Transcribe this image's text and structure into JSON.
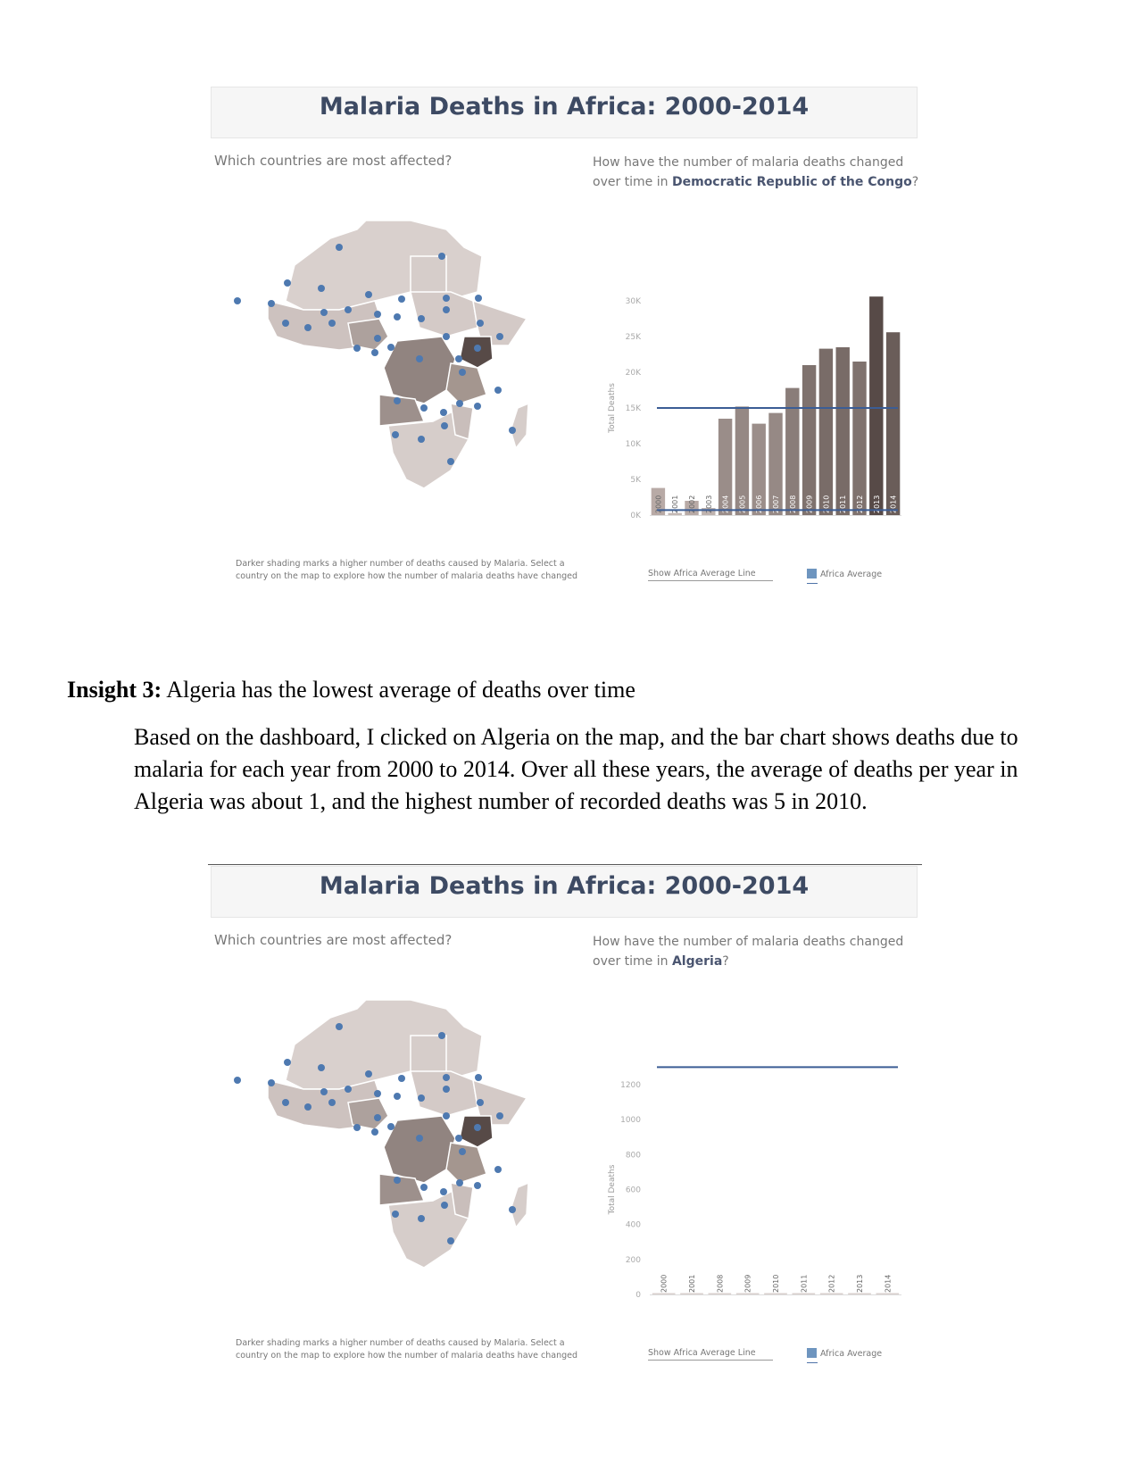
{
  "dashboard_1": {
    "title": "Malaria Deaths in Africa: 2000-2014",
    "map_question": "Which countries are most affected?",
    "chart_question_prefix": "How have the number of malaria deaths changed over time in",
    "country": "Democratic Republic of the Congo",
    "chart_question_suffix": "?",
    "map_note": "Darker shading marks a higher number of deaths caused by Malaria. Select a country on the map to explore how the number of malaria deaths have changed",
    "toggle_label": "Show Africa Average Line",
    "legend_label": "Africa Average"
  },
  "insight": {
    "label": "Insight 3:",
    "headline": "Algeria has the lowest average of deaths over time",
    "paragraph": "Based on the dashboard, I clicked on Algeria on the map, and the bar chart shows deaths due to malaria for each year from 2000 to 2014. Over all these years, the average of deaths per year in Algeria was about 1, and the highest number of recorded deaths was 5 in 2010."
  },
  "dashboard_2": {
    "title": "Malaria Deaths in Africa: 2000-2014",
    "map_question": "Which countries are most affected?",
    "chart_question_prefix": "How have the number of malaria deaths changed over time in",
    "country": "Algeria",
    "chart_question_suffix": "?",
    "map_note": "Darker shading marks a higher number of deaths caused by Malaria. Select a country on the map to explore how the number of malaria deaths have changed",
    "toggle_label": "Show Africa Average Line",
    "legend_label": "Africa Average"
  },
  "chart_data": [
    {
      "type": "bar",
      "ylabel": "Total Deaths",
      "ylim": [
        0,
        30000
      ],
      "yticks": [
        "0K",
        "5K",
        "10K",
        "15K",
        "20K",
        "25K",
        "30K"
      ],
      "ytick_values": [
        0,
        5000,
        10000,
        15000,
        20000,
        25000,
        30000
      ],
      "categories": [
        "2000",
        "2001",
        "2002",
        "2003",
        "2004",
        "2005",
        "2006",
        "2007",
        "2008",
        "2009",
        "2010",
        "2011",
        "2012",
        "2013",
        "2014"
      ],
      "values": [
        3800,
        300,
        2000,
        1000,
        13500,
        15200,
        12800,
        14300,
        17800,
        21000,
        23300,
        23500,
        21500,
        30600,
        25600
      ],
      "bar_colors": [
        "#b8aaa6",
        "#c4b8b5",
        "#b8aaa6",
        "#bfb3af",
        "#9a8d89",
        "#958884",
        "#9b8e8a",
        "#968985",
        "#8a7d79",
        "#7f726e",
        "#796c68",
        "#786b67",
        "#7f726e",
        "#574a47",
        "#6a5d59"
      ],
      "reference_lines": [
        {
          "name": "Africa Average",
          "value": 15000,
          "color": "#3b5d95"
        },
        {
          "name": "Africa Average",
          "value": 700,
          "color": "#3b5d95"
        }
      ]
    },
    {
      "type": "bar",
      "ylabel": "Total Deaths",
      "ylim": [
        0,
        1200
      ],
      "yticks": [
        "0",
        "200",
        "400",
        "600",
        "800",
        "1000",
        "1200"
      ],
      "ytick_values": [
        0,
        200,
        400,
        600,
        800,
        1000,
        1200
      ],
      "categories": [
        "2000",
        "2001",
        "2008",
        "2009",
        "2010",
        "2011",
        "2012",
        "2013",
        "2014"
      ],
      "values": [
        1,
        0,
        0,
        0,
        5,
        0,
        0,
        0,
        0
      ],
      "bar_colors": [
        "#d9d0cd",
        "#d9d0cd",
        "#d9d0cd",
        "#d9d0cd",
        "#d9d0cd",
        "#d9d0cd",
        "#d9d0cd",
        "#d9d0cd",
        "#d9d0cd"
      ],
      "reference_lines": [
        {
          "name": "Africa Average",
          "value": 1300,
          "color": "#3b5d95"
        }
      ]
    }
  ]
}
